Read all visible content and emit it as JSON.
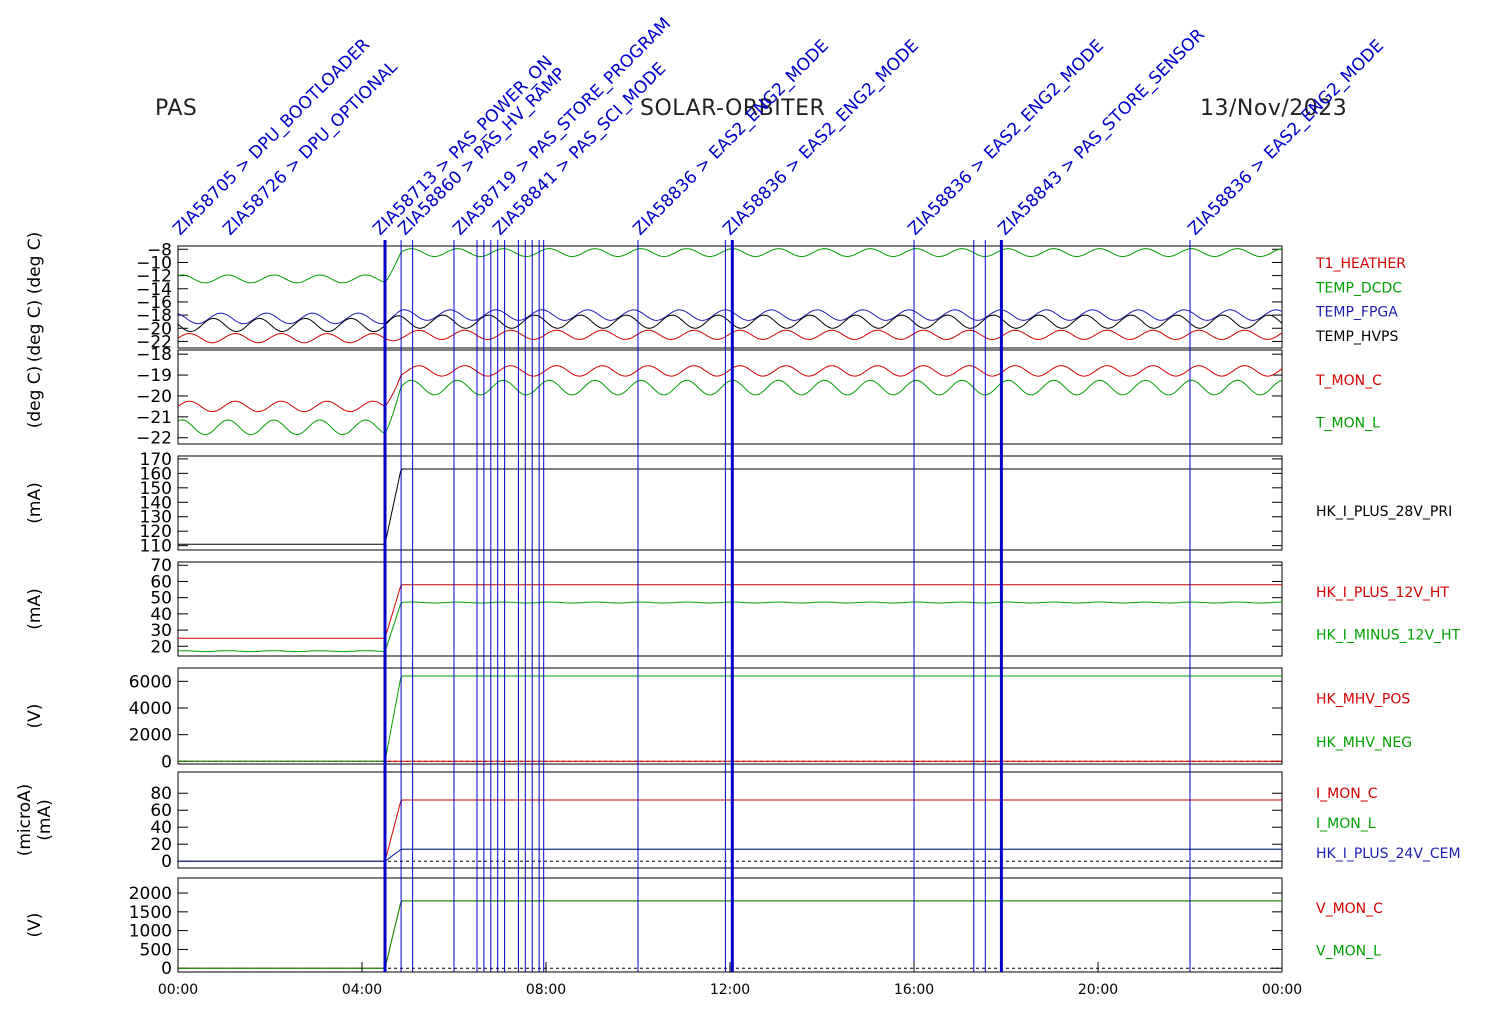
{
  "header": {
    "instrument": "PAS",
    "mission": "SOLAR-ORBITER",
    "date": "13/Nov/2023"
  },
  "colors": {
    "red": "#d40000",
    "green": "#00a000",
    "blue": "#1f1fb4",
    "black": "#000000",
    "event_blue": "#0000cc"
  },
  "chart_data": [
    {
      "type": "line",
      "ylabel": "(deg C)  (deg C)",
      "ylim": [
        -23,
        -7.5
      ],
      "yticks": [
        -8,
        -10,
        -12,
        -14,
        -16,
        -18,
        -20,
        -22
      ],
      "series": [
        {
          "name": "T1_HEATHER",
          "color": "red",
          "before": -21.5,
          "after": -21,
          "amp": 0.7
        },
        {
          "name": "TEMP_DCDC",
          "color": "green",
          "before": -12.5,
          "after": -8.5,
          "amp": 0.6
        },
        {
          "name": "TEMP_FPGA",
          "color": "blue",
          "before": -18.5,
          "after": -18,
          "amp": 0.8
        },
        {
          "name": "TEMP_HVPS",
          "color": "black",
          "before": -19.5,
          "after": -19,
          "amp": 1.0
        }
      ]
    },
    {
      "type": "line",
      "ylabel": "(deg C)",
      "ylim": [
        -22.3,
        -17.8
      ],
      "yticks": [
        -18,
        -19,
        -20,
        -21,
        -22
      ],
      "series": [
        {
          "name": "T_MON_C",
          "color": "red",
          "before": -20.5,
          "after": -18.8,
          "amp": 0.25
        },
        {
          "name": "T_MON_L",
          "color": "green",
          "before": -21.5,
          "after": -19.6,
          "amp": 0.35
        }
      ]
    },
    {
      "type": "line",
      "ylabel": "(mA)",
      "ylim": [
        107,
        172
      ],
      "yticks": [
        110,
        120,
        130,
        140,
        150,
        160,
        170
      ],
      "series": [
        {
          "name": "HK_I_PLUS_28V_PRI",
          "color": "black",
          "before": 111,
          "after": 163,
          "amp": 0
        }
      ]
    },
    {
      "type": "line",
      "ylabel": "(mA)",
      "ylim": [
        14,
        72
      ],
      "yticks": [
        20,
        30,
        40,
        50,
        60,
        70
      ],
      "series": [
        {
          "name": "HK_I_PLUS_12V_HT",
          "color": "red",
          "before": 25,
          "after": 58,
          "amp": 0
        },
        {
          "name": "HK_I_MINUS_12V_HT",
          "color": "green",
          "before": 17,
          "after": 47,
          "amp": 0.3
        }
      ]
    },
    {
      "type": "line",
      "ylabel": "(V)",
      "ylim": [
        -200,
        7000
      ],
      "yticks": [
        0,
        2000,
        4000,
        6000
      ],
      "series": [
        {
          "name": "HK_MHV_POS",
          "color": "red",
          "before": 0,
          "after": 0,
          "amp": 0
        },
        {
          "name": "HK_MHV_NEG",
          "color": "green",
          "before": 0,
          "after": 6400,
          "amp": 0
        }
      ]
    },
    {
      "type": "line",
      "ylabel": "(microA)\n(mA)",
      "ylim": [
        -8,
        105
      ],
      "yticks": [
        0,
        20,
        40,
        60,
        80
      ],
      "series": [
        {
          "name": "I_MON_C",
          "color": "red",
          "before": 0,
          "after": 72,
          "amp": 0
        },
        {
          "name": "I_MON_L",
          "color": "green",
          "before": 0,
          "after": 14,
          "amp": 0
        },
        {
          "name": "HK_I_PLUS_24V_CEM",
          "color": "blue",
          "before": 0,
          "after": 14,
          "amp": 0
        }
      ]
    },
    {
      "type": "line",
      "ylabel": "(V)",
      "ylim": [
        -100,
        2400
      ],
      "yticks": [
        0,
        500,
        1000,
        1500,
        2000
      ],
      "series": [
        {
          "name": "V_MON_C",
          "color": "red",
          "before": 0,
          "after": 1790,
          "amp": 0
        },
        {
          "name": "V_MON_L",
          "color": "green",
          "before": 0,
          "after": 1790,
          "amp": 0
        }
      ]
    }
  ],
  "x_axis": {
    "ticks": [
      "00:00",
      "04:00",
      "08:00",
      "12:00",
      "16:00",
      "20:00",
      "00:00"
    ]
  },
  "events": {
    "lines": [
      4.5,
      4.85,
      5.1,
      6.0,
      6.5,
      6.65,
      6.8,
      6.95,
      7.1,
      7.4,
      7.55,
      7.7,
      7.85,
      7.95,
      10.0,
      11.9,
      12.05,
      16.0,
      17.3,
      17.55,
      17.9,
      22.0
    ],
    "labels": [
      "ZIA58705 > DPU_BOOTLOADER",
      "ZIA58726 > DPU_OPTIONAL",
      "ZIA58836 > EAS2_ENG2_MODE",
      "ZIA58836 > EAS2_ENG2_MODE",
      "ZIA58836 > EAS2_ENG2_MODE",
      "ZIA58836 > EAS2_ENG2_MODE",
      "ZIA58719 > PAS_STORE_PROGRAM",
      "ZIA58713 > PAS_POWER_ON",
      "ZIA58843 > PAS_STORE_SENSOR",
      "ZIA58860 > PAS_HV_RAMP",
      "ZIA58841 > PAS_SCI_MODE"
    ]
  }
}
